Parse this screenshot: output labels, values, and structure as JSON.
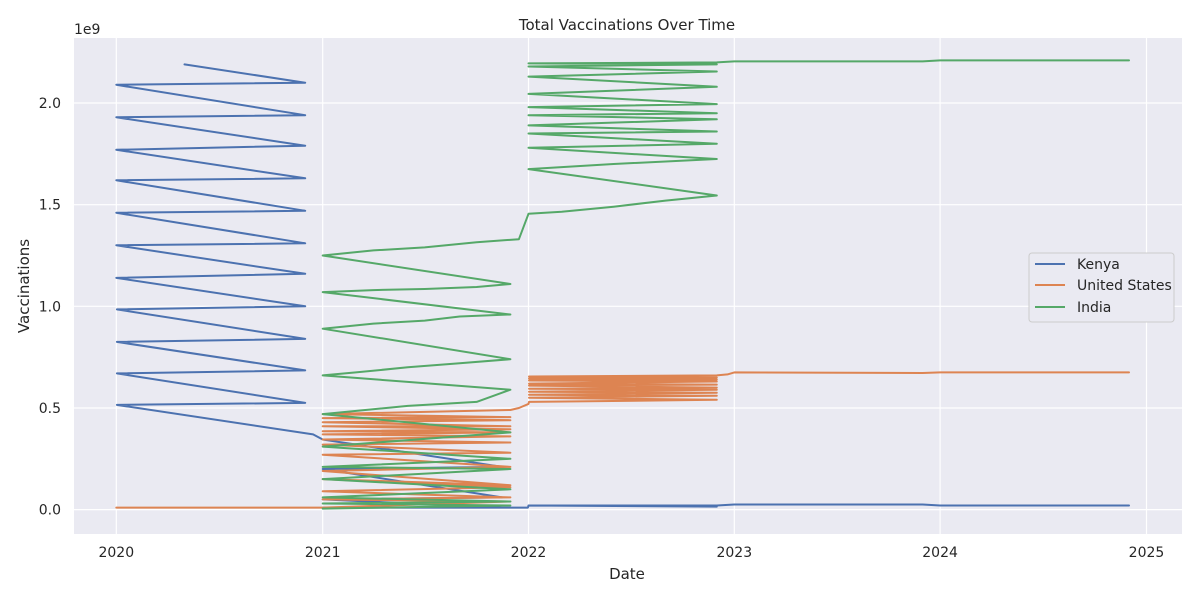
{
  "chart_data": {
    "type": "line",
    "title": "Total Vaccinations Over Time",
    "xlabel": "Date",
    "ylabel": "Vaccinations",
    "y_offset_label": "1e9",
    "xlim": [
      "2019-10-18",
      "2025-03-05"
    ],
    "ylim": [
      -0.12,
      2.32
    ],
    "y_multiplier": 1000000000,
    "x_ticks": [
      {
        "value": "2020-01-01",
        "label": "2020"
      },
      {
        "value": "2021-01-01",
        "label": "2021"
      },
      {
        "value": "2022-01-01",
        "label": "2022"
      },
      {
        "value": "2023-01-01",
        "label": "2023"
      },
      {
        "value": "2024-01-01",
        "label": "2024"
      },
      {
        "value": "2025-01-01",
        "label": "2025"
      }
    ],
    "y_ticks": [
      {
        "value": 0.0,
        "label": "0.0"
      },
      {
        "value": 0.5,
        "label": "0.5"
      },
      {
        "value": 1.0,
        "label": "1.0"
      },
      {
        "value": 1.5,
        "label": "1.5"
      },
      {
        "value": 2.0,
        "label": "2.0"
      }
    ],
    "grid": true,
    "legend_position": "center-right",
    "series": [
      {
        "name": "Kenya",
        "color": "#4c72b0",
        "points": [
          [
            "2020-05-01",
            2.19
          ],
          [
            "2020-12-01",
            2.1
          ],
          [
            "2020-01-01",
            2.09
          ],
          [
            "2020-12-01",
            1.94
          ],
          [
            "2020-01-01",
            1.93
          ],
          [
            "2020-12-01",
            1.79
          ],
          [
            "2020-01-01",
            1.77
          ],
          [
            "2020-12-01",
            1.63
          ],
          [
            "2020-01-01",
            1.62
          ],
          [
            "2020-12-01",
            1.47
          ],
          [
            "2020-01-01",
            1.46
          ],
          [
            "2020-12-01",
            1.31
          ],
          [
            "2020-01-01",
            1.3
          ],
          [
            "2020-12-01",
            1.16
          ],
          [
            "2020-01-01",
            1.14
          ],
          [
            "2020-12-01",
            1.0
          ],
          [
            "2020-01-02",
            0.985
          ],
          [
            "2020-12-01",
            0.84
          ],
          [
            "2020-01-02",
            0.825
          ],
          [
            "2020-12-01",
            0.685
          ],
          [
            "2020-01-02",
            0.67
          ],
          [
            "2020-12-01",
            0.525
          ],
          [
            "2020-01-02",
            0.515
          ],
          [
            "2020-12-15",
            0.37
          ],
          [
            "2021-01-01",
            0.345
          ],
          [
            "2021-11-15",
            0.21
          ],
          [
            "2021-01-01",
            0.2
          ],
          [
            "2021-11-15",
            0.06
          ],
          [
            "2021-01-01",
            0.05
          ],
          [
            "2021-11-15",
            0.01
          ],
          [
            "2021-01-01",
            0.01
          ],
          [
            "2021-12-31",
            0.01
          ],
          [
            "2022-01-01",
            0.02
          ],
          [
            "2022-12-01",
            0.015
          ],
          [
            "2022-01-01",
            0.02
          ],
          [
            "2022-12-01",
            0.02
          ],
          [
            "2023-01-01",
            0.025
          ],
          [
            "2023-12-01",
            0.025
          ],
          [
            "2024-01-01",
            0.02
          ],
          [
            "2024-12-01",
            0.02
          ]
        ]
      },
      {
        "name": "United States",
        "color": "#dd8452",
        "points": [
          [
            "2020-01-01",
            0.01
          ],
          [
            "2020-12-31",
            0.01
          ],
          [
            "2021-01-01",
            0.01
          ],
          [
            "2021-11-30",
            0.04
          ],
          [
            "2021-01-01",
            0.05
          ],
          [
            "2021-11-30",
            0.06
          ],
          [
            "2021-01-01",
            0.09
          ],
          [
            "2021-11-30",
            0.11
          ],
          [
            "2021-01-01",
            0.15
          ],
          [
            "2021-11-30",
            0.12
          ],
          [
            "2021-01-01",
            0.19
          ],
          [
            "2021-11-30",
            0.21
          ],
          [
            "2021-01-01",
            0.27
          ],
          [
            "2021-11-30",
            0.28
          ],
          [
            "2021-01-01",
            0.32
          ],
          [
            "2021-11-30",
            0.33
          ],
          [
            "2021-01-01",
            0.345
          ],
          [
            "2021-11-30",
            0.36
          ],
          [
            "2021-01-01",
            0.37
          ],
          [
            "2021-11-30",
            0.38
          ],
          [
            "2021-01-01",
            0.385
          ],
          [
            "2021-11-30",
            0.395
          ],
          [
            "2021-01-01",
            0.41
          ],
          [
            "2021-11-30",
            0.41
          ],
          [
            "2021-01-01",
            0.43
          ],
          [
            "2021-11-30",
            0.44
          ],
          [
            "2021-01-01",
            0.45
          ],
          [
            "2021-11-30",
            0.455
          ],
          [
            "2021-01-01",
            0.47
          ],
          [
            "2021-11-30",
            0.49
          ],
          [
            "2021-12-15",
            0.5
          ],
          [
            "2022-01-01",
            0.52
          ],
          [
            "2022-01-02",
            0.53
          ],
          [
            "2022-12-01",
            0.54
          ],
          [
            "2022-01-02",
            0.55
          ],
          [
            "2022-12-01",
            0.56
          ],
          [
            "2022-01-02",
            0.565
          ],
          [
            "2022-12-01",
            0.575
          ],
          [
            "2022-01-02",
            0.58
          ],
          [
            "2022-12-01",
            0.59
          ],
          [
            "2022-01-02",
            0.595
          ],
          [
            "2022-12-01",
            0.6
          ],
          [
            "2022-01-02",
            0.61
          ],
          [
            "2022-12-01",
            0.615
          ],
          [
            "2022-01-02",
            0.62
          ],
          [
            "2022-12-01",
            0.63
          ],
          [
            "2022-01-02",
            0.635
          ],
          [
            "2022-12-01",
            0.64
          ],
          [
            "2022-01-02",
            0.645
          ],
          [
            "2022-12-01",
            0.65
          ],
          [
            "2022-01-02",
            0.655
          ],
          [
            "2022-12-01",
            0.66
          ],
          [
            "2022-12-20",
            0.665
          ],
          [
            "2023-01-01",
            0.675
          ],
          [
            "2023-12-01",
            0.672
          ],
          [
            "2024-01-01",
            0.675
          ],
          [
            "2024-12-01",
            0.675
          ]
        ]
      },
      {
        "name": "India",
        "color": "#55a868",
        "points": [
          [
            "2021-01-01",
            0.005
          ],
          [
            "2021-11-30",
            0.02
          ],
          [
            "2021-01-01",
            0.03
          ],
          [
            "2021-11-30",
            0.04
          ],
          [
            "2021-01-01",
            0.06
          ],
          [
            "2021-11-30",
            0.1
          ],
          [
            "2021-01-01",
            0.15
          ],
          [
            "2021-11-30",
            0.2
          ],
          [
            "2021-01-01",
            0.21
          ],
          [
            "2021-11-30",
            0.25
          ],
          [
            "2021-01-01",
            0.31
          ],
          [
            "2021-11-30",
            0.38
          ],
          [
            "2021-01-01",
            0.47
          ],
          [
            "2021-06-01",
            0.51
          ],
          [
            "2021-10-01",
            0.53
          ],
          [
            "2021-11-30",
            0.59
          ],
          [
            "2021-01-01",
            0.66
          ],
          [
            "2021-03-01",
            0.675
          ],
          [
            "2021-06-01",
            0.7
          ],
          [
            "2021-09-01",
            0.72
          ],
          [
            "2021-11-30",
            0.74
          ],
          [
            "2021-01-01",
            0.89
          ],
          [
            "2021-04-01",
            0.915
          ],
          [
            "2021-07-01",
            0.93
          ],
          [
            "2021-09-01",
            0.95
          ],
          [
            "2021-11-30",
            0.96
          ],
          [
            "2021-01-01",
            1.07
          ],
          [
            "2021-04-01",
            1.08
          ],
          [
            "2021-07-01",
            1.085
          ],
          [
            "2021-10-01",
            1.095
          ],
          [
            "2021-11-30",
            1.11
          ],
          [
            "2021-01-01",
            1.25
          ],
          [
            "2021-04-01",
            1.275
          ],
          [
            "2021-07-01",
            1.29
          ],
          [
            "2021-10-01",
            1.315
          ],
          [
            "2021-12-15",
            1.33
          ],
          [
            "2022-01-01",
            1.455
          ],
          [
            "2022-03-01",
            1.465
          ],
          [
            "2022-06-01",
            1.49
          ],
          [
            "2022-09-01",
            1.52
          ],
          [
            "2022-12-01",
            1.545
          ],
          [
            "2022-01-01",
            1.675
          ],
          [
            "2022-06-01",
            1.7
          ],
          [
            "2022-12-01",
            1.725
          ],
          [
            "2022-01-01",
            1.78
          ],
          [
            "2022-12-01",
            1.8
          ],
          [
            "2022-01-01",
            1.85
          ],
          [
            "2022-12-01",
            1.86
          ],
          [
            "2022-01-01",
            1.89
          ],
          [
            "2022-12-01",
            1.92
          ],
          [
            "2022-01-01",
            1.94
          ],
          [
            "2022-12-01",
            1.95
          ],
          [
            "2022-01-01",
            1.98
          ],
          [
            "2022-12-01",
            1.995
          ],
          [
            "2022-01-01",
            2.045
          ],
          [
            "2022-12-01",
            2.08
          ],
          [
            "2022-01-01",
            2.13
          ],
          [
            "2022-12-01",
            2.155
          ],
          [
            "2022-01-01",
            2.18
          ],
          [
            "2022-12-01",
            2.19
          ],
          [
            "2022-01-01",
            2.195
          ],
          [
            "2022-12-01",
            2.2
          ],
          [
            "2023-01-01",
            2.205
          ],
          [
            "2023-12-01",
            2.205
          ],
          [
            "2024-01-01",
            2.21
          ],
          [
            "2024-12-01",
            2.21
          ]
        ]
      }
    ]
  }
}
